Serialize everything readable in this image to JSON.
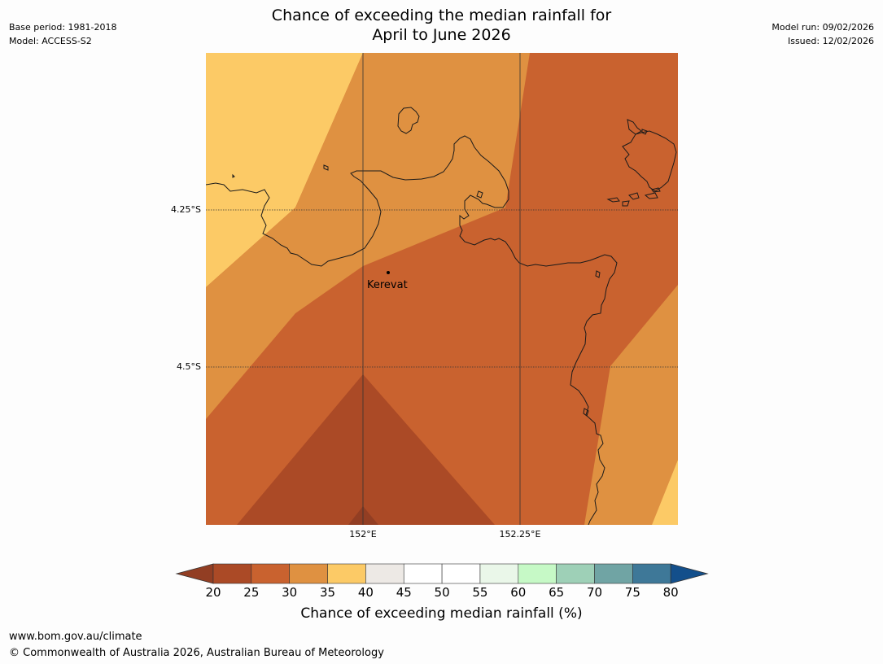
{
  "header": {
    "base_period": "Base period: 1981-2018",
    "model": "Model: ACCESS-S2",
    "model_run": "Model run: 09/02/2026",
    "issued": "Issued: 12/02/2026",
    "title_line1": "Chance of exceeding the median rainfall for",
    "title_line2": "April to June 2026"
  },
  "map": {
    "lat_labels": [
      "4.25°S",
      "4.5°S"
    ],
    "lon_labels": [
      "152°E",
      "152.25°E"
    ],
    "place": "Kerevat"
  },
  "colorbar": {
    "ticks": [
      "20",
      "25",
      "30",
      "35",
      "40",
      "45",
      "50",
      "55",
      "60",
      "65",
      "70",
      "75",
      "80"
    ],
    "colors": [
      "#ab4a26",
      "#c9622f",
      "#df9141",
      "#fcca66",
      "#ede9e5",
      "#ffffff",
      "#ffffff",
      "#eaf7e9",
      "#c6f9c6",
      "#9ed0b7",
      "#70a4a4",
      "#3e7898"
    ],
    "low_color": "#923e23",
    "high_color": "#134f8b",
    "label": "Chance of exceeding median rainfall (%)"
  },
  "footer": {
    "url": "www.bom.gov.au/climate",
    "copyright": "© Commonwealth of Australia 2026, Australian Bureau of Meteorology"
  }
}
